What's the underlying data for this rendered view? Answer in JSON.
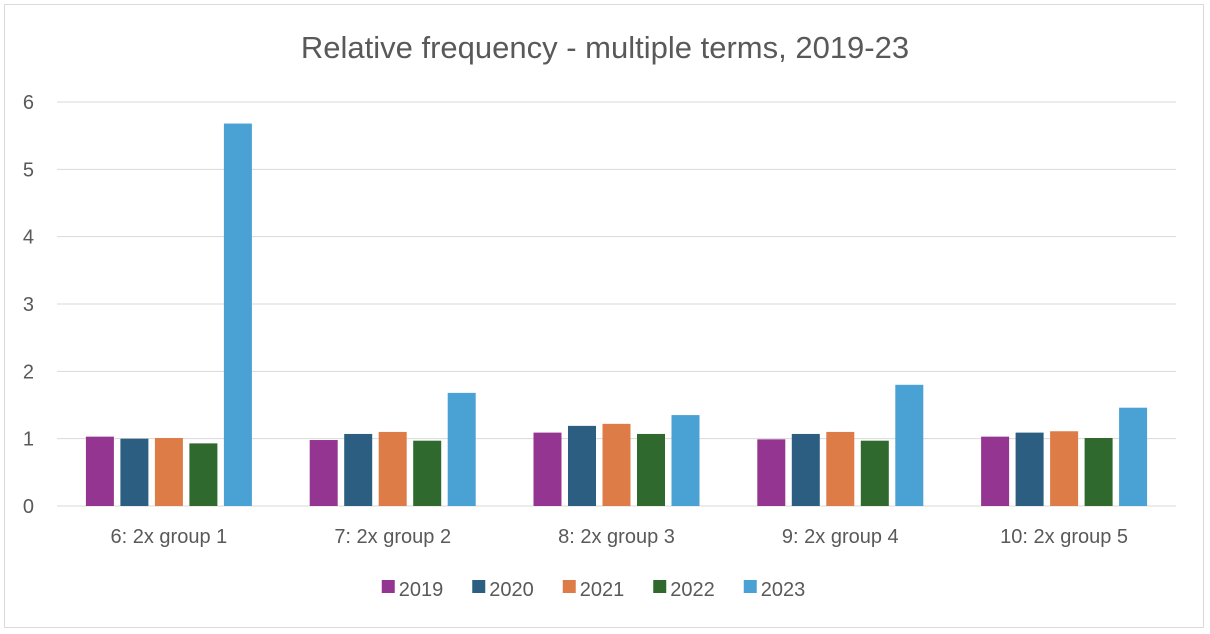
{
  "chart_data": {
    "type": "bar",
    "title": "Relative frequency - multiple terms, 2019-23",
    "xlabel": "",
    "ylabel": "",
    "ylim": [
      0,
      6
    ],
    "yticks": [
      "0",
      "1",
      "2",
      "3",
      "4",
      "5",
      "6"
    ],
    "grid": true,
    "legend_position": "bottom",
    "categories": [
      "6: 2x group 1",
      "7: 2x group 2",
      "8: 2x group 3",
      "9: 2x group 4",
      "10: 2x group 5"
    ],
    "series": [
      {
        "name": "2019",
        "color": "#953592",
        "values": [
          1.03,
          0.98,
          1.09,
          0.99,
          1.03
        ]
      },
      {
        "name": "2020",
        "color": "#2b5e80",
        "values": [
          1.0,
          1.07,
          1.19,
          1.07,
          1.09
        ]
      },
      {
        "name": "2021",
        "color": "#dd7c47",
        "values": [
          1.01,
          1.1,
          1.22,
          1.1,
          1.11
        ]
      },
      {
        "name": "2022",
        "color": "#30692d",
        "values": [
          0.93,
          0.97,
          1.07,
          0.97,
          1.01
        ]
      },
      {
        "name": "2023",
        "color": "#4aa1d3",
        "values": [
          5.68,
          1.68,
          1.35,
          1.8,
          1.46
        ]
      }
    ]
  }
}
